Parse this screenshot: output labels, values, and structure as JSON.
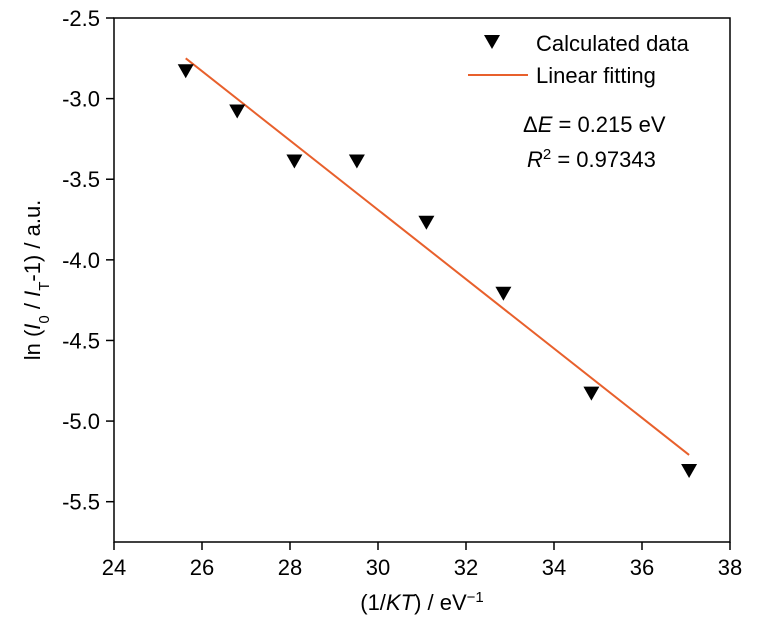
{
  "chart_data": {
    "type": "scatter",
    "xlim": [
      24,
      38
    ],
    "ylim": [
      -5.75,
      -2.5
    ],
    "x_ticks": [
      24,
      26,
      28,
      30,
      32,
      34,
      36,
      38
    ],
    "x_tick_labels": [
      "24",
      "26",
      "28",
      "30",
      "32",
      "34",
      "36",
      "38"
    ],
    "y_ticks": [
      -2.5,
      -3.0,
      -3.5,
      -4.0,
      -4.5,
      -5.0,
      -5.5
    ],
    "y_tick_labels": [
      "-2.5",
      "-3.0",
      "-3.5",
      "-4.0",
      "-4.5",
      "-5.0",
      "-5.5"
    ],
    "xlabel": {
      "part1": "(1/",
      "part2": "KT",
      "part3": ") / eV",
      "sup": "−1"
    },
    "ylabel": {
      "part1": "ln (",
      "i0": "I",
      "sub0": "0",
      "slash": " / ",
      "it": "I",
      "subT": "T",
      "part2": "-1) / a.u."
    },
    "grid": false,
    "legend_position": "top-right",
    "series": [
      {
        "name": "Calculated data",
        "kind": "scatter",
        "marker": "down-triangle",
        "color": "#000000",
        "x": [
          25.63,
          26.8,
          28.1,
          29.52,
          31.1,
          32.85,
          34.85,
          37.07
        ],
        "y": [
          -2.83,
          -3.08,
          -3.39,
          -3.39,
          -3.77,
          -4.21,
          -4.83,
          -5.31
        ]
      },
      {
        "name": "Linear fitting",
        "kind": "line",
        "color": "#e8602c",
        "x": [
          25.63,
          37.07
        ],
        "y": [
          -2.75,
          -5.21
        ]
      }
    ],
    "annotations": {
      "delta_e": {
        "symbol": "Δ",
        "var": "E",
        "value": " = 0.215 eV"
      },
      "r_squared": {
        "var": "R",
        "sup": "2",
        "value": " = 0.97343"
      }
    }
  }
}
